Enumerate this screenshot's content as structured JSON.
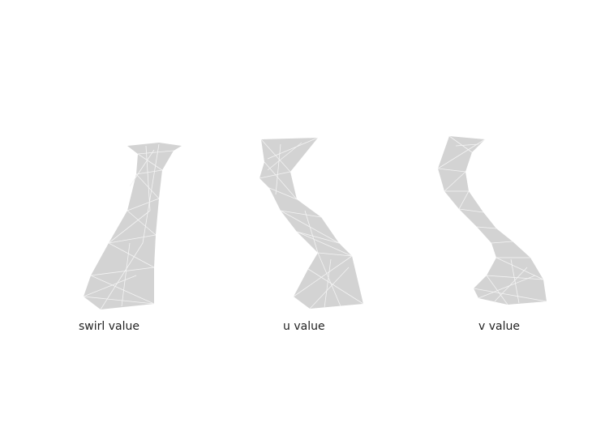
{
  "panels": [
    {
      "label": "swirl value"
    },
    {
      "label": "u value"
    },
    {
      "label": "v value"
    }
  ],
  "colors": {
    "background": "#ffffff",
    "shape_fill": "#d3d3d3",
    "mesh_lines": "#f4f4f4",
    "label_text": "#222222"
  }
}
